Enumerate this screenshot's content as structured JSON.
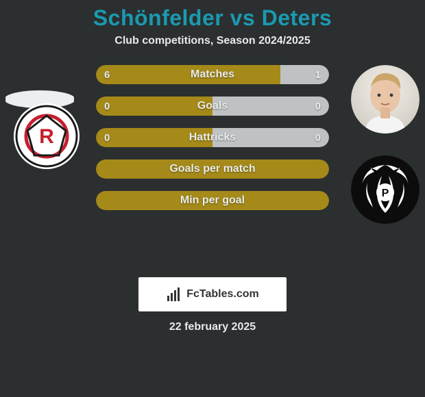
{
  "background_color": "#2b2f30",
  "title": {
    "text": "Schönfelder vs Deters",
    "color": "#1a9ab0",
    "fontsize": 32
  },
  "subtitle": {
    "text": "Club competitions, Season 2024/2025",
    "color": "#e8eaeb",
    "fontsize": 16
  },
  "players": {
    "left": {
      "name": "Schönfelder",
      "photo_placeholder": true
    },
    "right": {
      "name": "Deters"
    }
  },
  "clubs": {
    "left": {
      "name": "Jahn Regensburg",
      "badge_letter": "R",
      "badge_bg": "#ffffff",
      "badge_ring": "#1a1a1a",
      "badge_red": "#c61f2d"
    },
    "right": {
      "name": "Preußen Münster",
      "badge_bg": "#0c0c0c",
      "badge_fg": "#ffffff",
      "badge_letter": "P"
    }
  },
  "bars": {
    "left_color": "#a58a19",
    "right_color": "#bfc2c3",
    "label_color": "#e8eaeb",
    "label_fontsize": 16,
    "value_fontsize": 15,
    "items": [
      {
        "label": "Matches",
        "left": "6",
        "right": "1",
        "left_pct": 79,
        "right_pct": 21,
        "show_values": true
      },
      {
        "label": "Goals",
        "left": "0",
        "right": "0",
        "left_pct": 50,
        "right_pct": 50,
        "show_values": true
      },
      {
        "label": "Hattricks",
        "left": "0",
        "right": "0",
        "left_pct": 50,
        "right_pct": 50,
        "show_values": true
      },
      {
        "label": "Goals per match",
        "left": "",
        "right": "",
        "left_pct": 100,
        "right_pct": 0,
        "show_values": false
      },
      {
        "label": "Min per goal",
        "left": "",
        "right": "",
        "left_pct": 100,
        "right_pct": 0,
        "show_values": false
      }
    ]
  },
  "branding": {
    "text": "FcTables.com",
    "text_color": "#333333",
    "bg": "#ffffff",
    "fontsize": 16
  },
  "date": {
    "text": "22 february 2025",
    "color": "#e8eaeb",
    "fontsize": 16
  }
}
